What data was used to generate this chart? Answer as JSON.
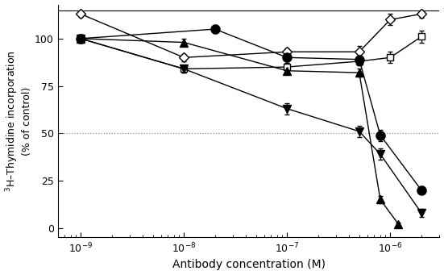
{
  "series": [
    {
      "label": "open_diamond",
      "marker": "D",
      "filled": false,
      "x": [
        1e-09,
        1e-08,
        1e-07,
        5e-07,
        1e-06,
        2e-06
      ],
      "y": [
        113,
        90,
        93,
        93,
        110,
        113
      ],
      "yerr": [
        1.5,
        2,
        2,
        3,
        3,
        2
      ]
    },
    {
      "label": "open_square",
      "marker": "s",
      "filled": false,
      "x": [
        1e-09,
        1e-08,
        1e-07,
        5e-07,
        1e-06,
        2e-06
      ],
      "y": [
        100,
        84,
        85,
        88,
        90,
        101
      ],
      "yerr": [
        2,
        2,
        2,
        2,
        3,
        3
      ]
    },
    {
      "label": "filled_circle",
      "marker": "o",
      "filled": true,
      "x": [
        1e-09,
        2e-08,
        1e-07,
        5e-07,
        8e-07,
        2e-06
      ],
      "y": [
        100,
        105,
        90,
        89,
        49,
        20
      ],
      "yerr": [
        2,
        2,
        3,
        3,
        3,
        2
      ]
    },
    {
      "label": "filled_triangle_up",
      "marker": "^",
      "filled": true,
      "x": [
        1e-09,
        1e-08,
        1e-07,
        5e-07,
        8e-07,
        1.2e-06
      ],
      "y": [
        100,
        98,
        83,
        82,
        15,
        2
      ],
      "yerr": [
        2,
        2,
        2,
        2,
        2,
        1
      ]
    },
    {
      "label": "filled_triangle_down",
      "marker": "v",
      "filled": true,
      "x": [
        1e-09,
        1e-08,
        1e-07,
        5e-07,
        8e-07,
        2e-06
      ],
      "y": [
        100,
        84,
        63,
        51,
        39,
        8
      ],
      "yerr": [
        2,
        2,
        3,
        3,
        3,
        2
      ]
    }
  ],
  "xlabel": "Antibody concentration (M)",
  "ylabel": "$^3$H–Thymidine incorporation\n(% of control)",
  "xlim": [
    6e-10,
    3e-06
  ],
  "ylim": [
    -5,
    118
  ],
  "yticks": [
    0,
    25,
    50,
    75,
    100
  ],
  "hline_y": 50,
  "clip_on": true,
  "background_color": "#ffffff"
}
